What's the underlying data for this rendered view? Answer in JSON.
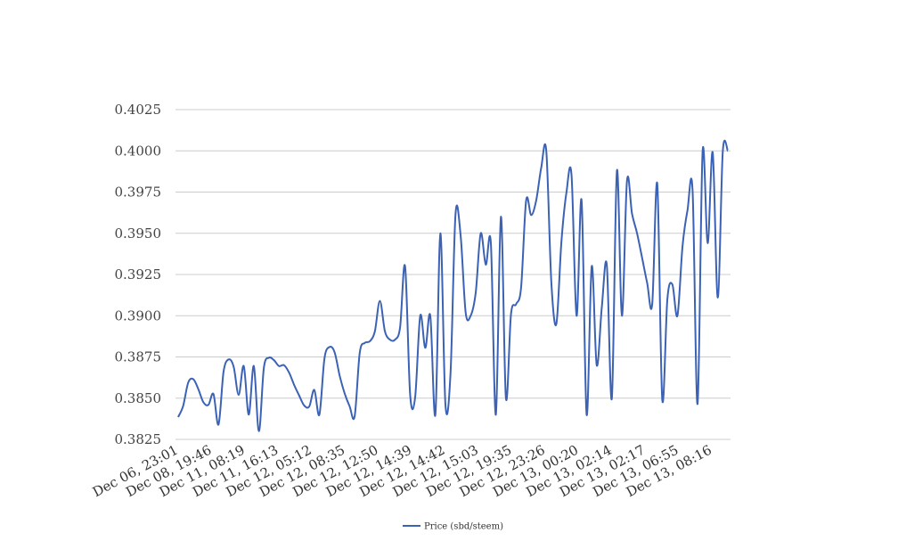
{
  "chart_data": {
    "type": "line",
    "title": "",
    "xlabel": "",
    "ylabel": "",
    "ylim": [
      0.3825,
      0.4025
    ],
    "y_ticks": [
      "0.3825",
      "0.3850",
      "0.3875",
      "0.3900",
      "0.3925",
      "0.3950",
      "0.3975",
      "0.4000",
      "0.4025"
    ],
    "x_ticks": [
      "Dec 06, 23:01",
      "Dec 08, 19:46",
      "Dec 11, 08:19",
      "Dec 11, 16:13",
      "Dec 12, 05:12",
      "Dec 12, 08:35",
      "Dec 12, 12:50",
      "Dec 12, 14:39",
      "Dec 12, 14:42",
      "Dec 12, 15:03",
      "Dec 12, 19:35",
      "Dec 12, 23:26",
      "Dec 13, 00:20",
      "Dec 13, 02:14",
      "Dec 13, 02:17",
      "Dec 13, 06:55",
      "Dec 13, 08:16"
    ],
    "grid": true,
    "legend_position": "bottom",
    "series": [
      {
        "name": "Price (sbd/steem)",
        "color": "#3b62b5",
        "values": [
          0.38385,
          0.38455,
          0.38595,
          0.38615,
          0.38555,
          0.38475,
          0.3846,
          0.38525,
          0.3834,
          0.3866,
          0.38735,
          0.3869,
          0.3852,
          0.38695,
          0.384,
          0.38695,
          0.383,
          0.38685,
          0.38745,
          0.3873,
          0.38695,
          0.387,
          0.38655,
          0.3858,
          0.38515,
          0.38455,
          0.3845,
          0.3855,
          0.384,
          0.3874,
          0.3881,
          0.3878,
          0.3864,
          0.3853,
          0.3845,
          0.3839,
          0.38775,
          0.38835,
          0.38845,
          0.38905,
          0.3909,
          0.38905,
          0.38855,
          0.38855,
          0.3893,
          0.393,
          0.3852,
          0.38505,
          0.39,
          0.38805,
          0.39,
          0.384,
          0.395,
          0.3846,
          0.3865,
          0.39615,
          0.3949,
          0.3902,
          0.39,
          0.3914,
          0.395,
          0.3931,
          0.3944,
          0.384,
          0.396,
          0.385,
          0.3901,
          0.3907,
          0.3917,
          0.397,
          0.3961,
          0.397,
          0.399,
          0.4,
          0.392,
          0.3895,
          0.3945,
          0.3975,
          0.39855,
          0.39,
          0.397,
          0.384,
          0.393,
          0.387,
          0.3905,
          0.3931,
          0.385,
          0.3988,
          0.39,
          0.3982,
          0.3962,
          0.395,
          0.3935,
          0.392,
          0.3907,
          0.398,
          0.3849,
          0.391,
          0.3919,
          0.39,
          0.3942,
          0.3964,
          0.3976,
          0.38465,
          0.4,
          0.3944,
          0.3999,
          0.3911,
          0.39995,
          0.4
        ]
      }
    ]
  }
}
